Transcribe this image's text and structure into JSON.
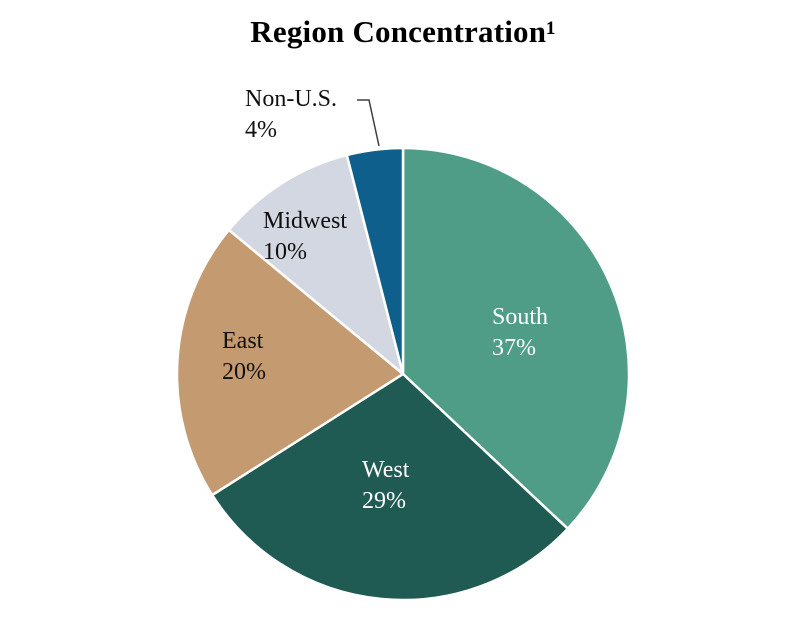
{
  "title": "Region Concentration¹",
  "chart_data": {
    "type": "pie",
    "title": "Region Concentration¹",
    "categories": [
      "South",
      "West",
      "East",
      "Midwest",
      "Non-U.S."
    ],
    "values": [
      37,
      29,
      20,
      10,
      4
    ],
    "labels": [
      "37%",
      "29%",
      "20%",
      "10%",
      "4%"
    ],
    "colors": [
      "#4f9d87",
      "#1f5b53",
      "#c49a70",
      "#d3d7e1",
      "#0f5f8d"
    ],
    "slice_border_color": "#ffffff",
    "label_text_colors": [
      "#ffffff",
      "#ffffff",
      "#101010",
      "#101010",
      "#101010"
    ],
    "start_angle_deg": 0,
    "direction": "clockwise",
    "legend_position": "none",
    "label_placement": "inside, except Non-U.S. outside with leader line",
    "leader_line_color": "#404040"
  }
}
